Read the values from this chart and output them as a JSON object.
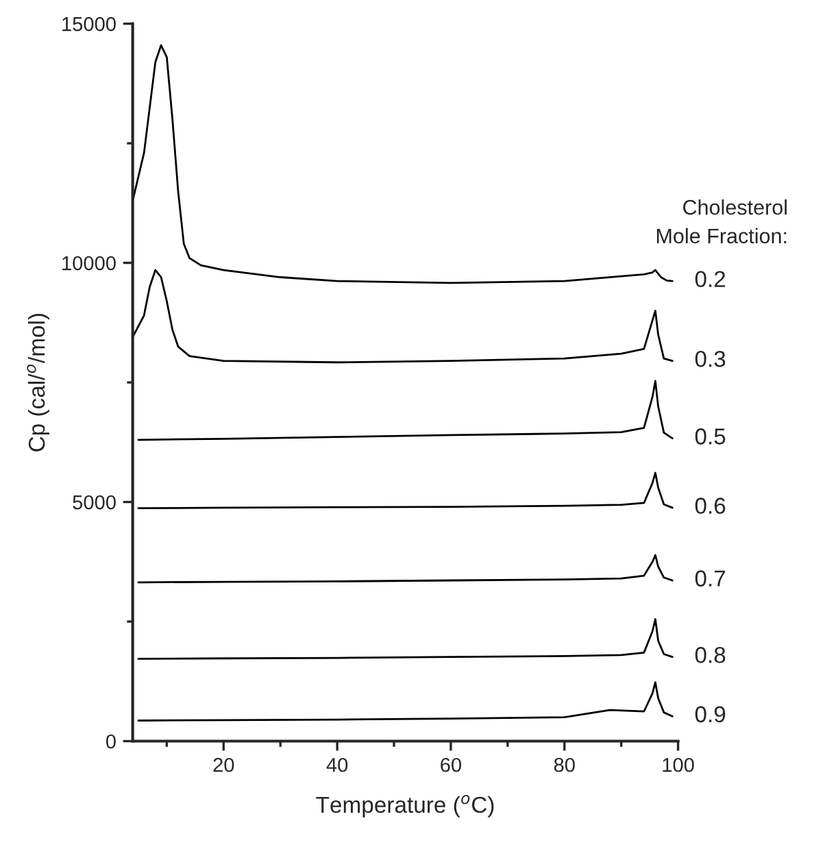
{
  "chart_data": {
    "type": "line",
    "xlabel": "Temperature ($^{o}$C)",
    "ylabel": "Cp (cal/$^{o}$/mol)",
    "legend_title": "Cholesterol\nMole Fraction:",
    "legend": "right",
    "grid": false,
    "marker": "none",
    "line_style": "solid",
    "xlim": [
      4,
      100
    ],
    "xticks": [
      {
        "value": 10,
        "label": null
      },
      20,
      {
        "value": 30,
        "label": null
      },
      40,
      {
        "value": 50,
        "label": null
      },
      60,
      {
        "value": 70,
        "label": null
      },
      80,
      {
        "value": 90,
        "label": null
      },
      100
    ],
    "ylim": [
      0,
      15000
    ],
    "yticks": [
      0,
      {
        "value": 2500,
        "label": null
      },
      5000,
      {
        "value": 7500,
        "label": null
      },
      10000,
      {
        "value": 12500,
        "label": null
      },
      15000
    ],
    "series": [
      {
        "name": "0.2",
        "color": "#000000",
        "x": [
          4,
          6,
          8,
          9,
          10,
          11,
          12,
          13,
          14,
          16,
          20,
          30,
          40,
          60,
          80,
          90,
          94,
          95.5,
          96,
          97,
          98,
          99
        ],
        "values": [
          11300,
          12300,
          14200,
          14550,
          14300,
          13000,
          11500,
          10400,
          10100,
          9950,
          9850,
          9700,
          9620,
          9580,
          9620,
          9720,
          9760,
          9800,
          9850,
          9700,
          9630,
          9620
        ]
      },
      {
        "name": "0.3",
        "color": "#000000",
        "x": [
          4,
          6,
          7,
          8,
          9,
          10,
          11,
          12,
          14,
          20,
          40,
          60,
          80,
          90,
          94,
          95.5,
          96,
          96.5,
          97.5,
          99
        ],
        "values": [
          8450,
          8900,
          9500,
          9850,
          9700,
          9200,
          8600,
          8250,
          8050,
          7950,
          7920,
          7950,
          8000,
          8100,
          8200,
          8800,
          9000,
          8500,
          8000,
          7950
        ]
      },
      {
        "name": "0.5",
        "color": "#000000",
        "x": [
          5,
          20,
          40,
          60,
          80,
          90,
          94,
          95.5,
          96,
          96.5,
          97.5,
          99
        ],
        "values": [
          6300,
          6320,
          6360,
          6400,
          6430,
          6460,
          6550,
          7200,
          7530,
          7000,
          6450,
          6330
        ]
      },
      {
        "name": "0.6",
        "color": "#000000",
        "x": [
          5,
          20,
          40,
          60,
          80,
          90,
          94,
          95.5,
          96,
          96.5,
          97.5,
          99
        ],
        "values": [
          4870,
          4880,
          4890,
          4900,
          4920,
          4940,
          4980,
          5400,
          5610,
          5300,
          4950,
          4880
        ]
      },
      {
        "name": "0.7",
        "color": "#000000",
        "x": [
          5,
          20,
          40,
          60,
          80,
          90,
          94,
          95.5,
          96,
          96.5,
          97.5,
          99
        ],
        "values": [
          3320,
          3330,
          3340,
          3360,
          3380,
          3400,
          3460,
          3750,
          3890,
          3650,
          3420,
          3360
        ]
      },
      {
        "name": "0.8",
        "color": "#000000",
        "x": [
          5,
          20,
          40,
          60,
          80,
          90,
          94,
          95.5,
          96,
          96.5,
          97.5,
          99
        ],
        "values": [
          1720,
          1730,
          1740,
          1760,
          1780,
          1800,
          1850,
          2300,
          2550,
          2100,
          1820,
          1760
        ]
      },
      {
        "name": "0.9",
        "color": "#000000",
        "x": [
          5,
          20,
          40,
          60,
          80,
          88,
          94,
          95.5,
          96,
          96.5,
          97.5,
          99
        ],
        "values": [
          430,
          440,
          450,
          470,
          500,
          650,
          620,
          1000,
          1230,
          900,
          600,
          520
        ]
      }
    ]
  }
}
